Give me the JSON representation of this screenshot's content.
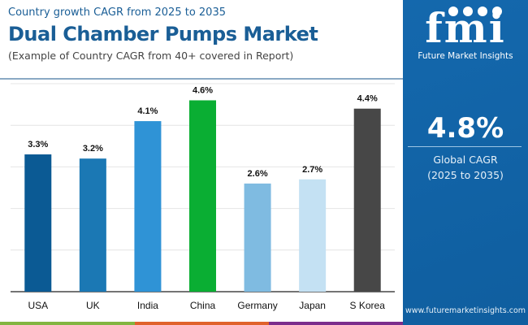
{
  "header": {
    "subtitle": "Country growth CAGR from 2025 to 2035",
    "title": "Dual Chamber Pumps Market",
    "note": "(Example of Country CAGR from 40+ covered in Report)"
  },
  "panel": {
    "logo_text": "fmi",
    "brand": "Future Market Insights",
    "global_value": "4.8%",
    "global_label": "Global CAGR",
    "global_period": "(2025 to 2035)",
    "url": "www.futuremarketinsights.com"
  },
  "chart_data": {
    "type": "bar",
    "categories": [
      "USA",
      "UK",
      "India",
      "China",
      "Germany",
      "Japan",
      "S Korea"
    ],
    "values": [
      3.3,
      3.2,
      4.1,
      4.6,
      2.6,
      2.7,
      4.4
    ],
    "labels": [
      "3.3%",
      "3.2%",
      "4.1%",
      "4.6%",
      "2.6%",
      "2.7%",
      "4.4%"
    ],
    "colors": [
      "#0b5a94",
      "#1b78b4",
      "#2f93d6",
      "#0aae33",
      "#7fbbe1",
      "#c4e1f3",
      "#474747"
    ],
    "ylim": [
      0,
      5
    ],
    "grid": true,
    "title": "",
    "xlabel": "",
    "ylabel": ""
  },
  "stripe_colors": [
    "#82b541",
    "#e0622b",
    "#7b2d8c"
  ]
}
